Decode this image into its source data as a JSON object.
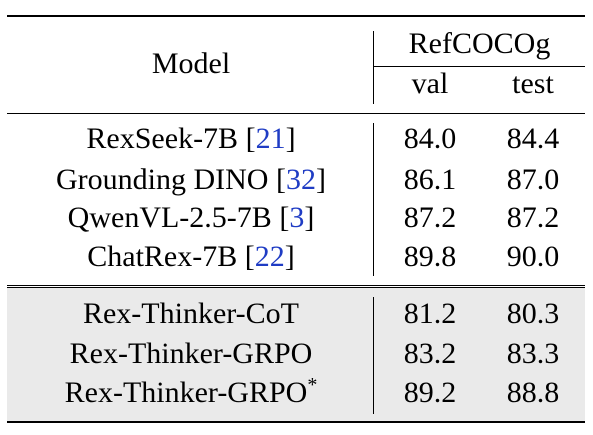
{
  "table": {
    "header": {
      "model": "Model",
      "group": "RefCOCOg",
      "val": "val",
      "test": "test"
    },
    "baselines": [
      {
        "name": "RexSeek-7B",
        "ref": "21",
        "val": "84.0",
        "test": "84.4"
      },
      {
        "name": "Grounding DINO",
        "ref": "32",
        "val": "86.1",
        "test": "87.0"
      },
      {
        "name": "QwenVL-2.5-7B",
        "ref": "3",
        "val": "87.2",
        "test": "87.2"
      },
      {
        "name": "ChatRex-7B",
        "ref": "22",
        "val": "89.8",
        "test": "90.0"
      }
    ],
    "ours": [
      {
        "name": "Rex-Thinker-CoT",
        "val": "81.2",
        "test": "80.3"
      },
      {
        "name": "Rex-Thinker-GRPO",
        "val": "83.2",
        "test": "83.3"
      },
      {
        "name": "Rex-Thinker-GRPO",
        "mark": "*",
        "val": "89.2",
        "test": "88.8"
      }
    ],
    "colors": {
      "citation": "#1f3cc4",
      "shading": "#eaeaea"
    }
  }
}
